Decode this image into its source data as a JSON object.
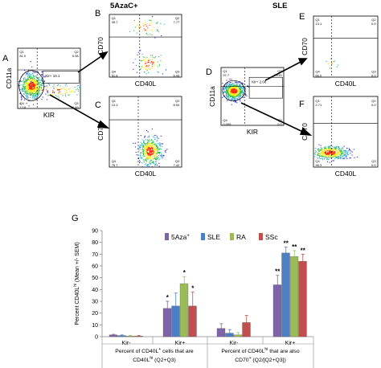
{
  "panels": {
    "A": {
      "letter": "A",
      "xlabel": "KIR",
      "ylabel": "CD11a",
      "gate_label": "Kir+ 10.1",
      "q": [
        "Q1",
        "Q2",
        "Q3",
        "Q4"
      ],
      "v": [
        "81.0",
        "0.08",
        "0.69",
        "7.18"
      ]
    },
    "B": {
      "letter": "B",
      "xlabel": "CD40L",
      "ylabel": "CD70",
      "q": [
        "Q1",
        "Q2",
        "Q3",
        "Q4"
      ],
      "v": [
        "35.7",
        "7.77",
        "6.43",
        "51.8"
      ]
    },
    "C": {
      "letter": "C",
      "xlabel": "CD40L",
      "ylabel": "CD70",
      "q": [
        "Q1",
        "Q2",
        "Q3",
        "Q4"
      ],
      "v": [
        "13.3",
        "8.94",
        "7.42",
        "75.7"
      ]
    },
    "D": {
      "letter": "D",
      "xlabel": "KIR",
      "ylabel": "CD11a",
      "gate_label": "Kir+ 2.06",
      "q": [
        "Q1",
        "Q2",
        "Q3",
        "Q4"
      ],
      "v": [
        "97.7",
        "0.015",
        "0.0",
        "0.009"
      ]
    },
    "E": {
      "letter": "E",
      "xlabel": "CD40L",
      "ylabel": "CD70",
      "q": [
        "Q1",
        "Q2",
        "Q3",
        "Q4"
      ],
      "v": [
        "13.1",
        "0.0",
        "0.0",
        "66.0"
      ]
    },
    "F": {
      "letter": "F",
      "xlabel": "CD40L",
      "ylabel": "CD70",
      "q": [
        "Q1",
        "Q2",
        "Q3",
        "Q4"
      ],
      "v": [
        "2.71",
        "0.0",
        "0.0",
        "96.3"
      ]
    }
  },
  "header_left": "5AzaC+",
  "header_right": "SLE",
  "chart_data": {
    "type": "bar",
    "panel_letter": "G",
    "ylabel": "Percent CD40L",
    "ylabel_sup": "hi",
    "ylabel_tail": " (Mean +/- SEM)",
    "ylim": [
      0,
      90
    ],
    "yticks": [
      "0",
      "10",
      "20",
      "30",
      "40",
      "50",
      "60",
      "70",
      "80",
      "90"
    ],
    "categories": [
      "Kir-",
      "Kir+",
      "Kir-",
      "Kir+"
    ],
    "series": [
      {
        "name": "5Aza",
        "name_sup": "+",
        "color": "#7e63a8",
        "values": [
          1.5,
          24,
          7,
          44
        ],
        "errors": [
          0.5,
          6,
          4,
          8
        ]
      },
      {
        "name": "SLE",
        "color": "#4d7fc4",
        "values": [
          1,
          26,
          3,
          71
        ],
        "errors": [
          0.5,
          11,
          3,
          5
        ]
      },
      {
        "name": "RA",
        "color": "#9bbb59",
        "values": [
          0.5,
          45,
          1.5,
          68
        ],
        "errors": [
          0.5,
          6,
          2,
          5
        ]
      },
      {
        "name": "SSc",
        "color": "#c0504d",
        "values": [
          0.5,
          26,
          12,
          64
        ],
        "errors": [
          0.5,
          12,
          6,
          6
        ]
      }
    ],
    "significance": [
      [
        "",
        "*",
        "",
        "**"
      ],
      [
        "",
        "",
        "",
        "**"
      ],
      [
        "",
        "*",
        "",
        "**"
      ],
      [
        "",
        "*",
        "",
        "**"
      ]
    ],
    "group_labels": [
      {
        "line1_a": "Percent of CD40L",
        "line1_sup": "+",
        "line1_b": " cells that are",
        "line2_a": "CD40L",
        "line2_sup": "hi",
        "line2_b": " (Q2+Q3)"
      },
      {
        "line1_a": "Percent of CD40L",
        "line1_sup": "hi",
        "line1_b": " that are also",
        "line2_a": "CD70",
        "line2_sup": "+",
        "line2_b": " (Q2/[Q2+Q3])"
      }
    ]
  }
}
